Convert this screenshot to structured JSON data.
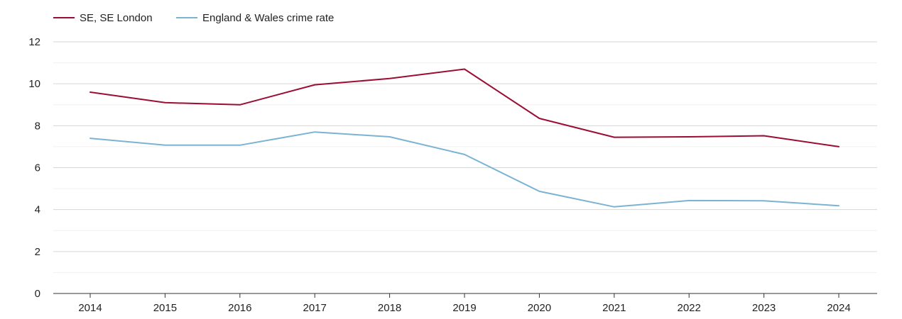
{
  "chart_data": {
    "type": "line",
    "title": "",
    "xlabel": "",
    "ylabel": "",
    "x": [
      "2014",
      "2015",
      "2016",
      "2017",
      "2018",
      "2019",
      "2020",
      "2021",
      "2022",
      "2023",
      "2024"
    ],
    "yticks": [
      "0",
      "2",
      "4",
      "6",
      "8",
      "10",
      "12"
    ],
    "ylim": [
      0,
      12
    ],
    "grid": true,
    "legend_position": "top-left",
    "series": [
      {
        "name": "SE, SE London",
        "color": "#9b0d35",
        "values": [
          9.6,
          9.1,
          9.0,
          9.95,
          10.25,
          10.7,
          8.35,
          7.45,
          7.47,
          7.52,
          7.0
        ]
      },
      {
        "name": "England & Wales crime rate",
        "color": "#7ab3d3",
        "values": [
          7.4,
          7.07,
          7.07,
          7.7,
          7.47,
          6.63,
          4.87,
          4.13,
          4.43,
          4.42,
          4.18
        ]
      }
    ]
  }
}
